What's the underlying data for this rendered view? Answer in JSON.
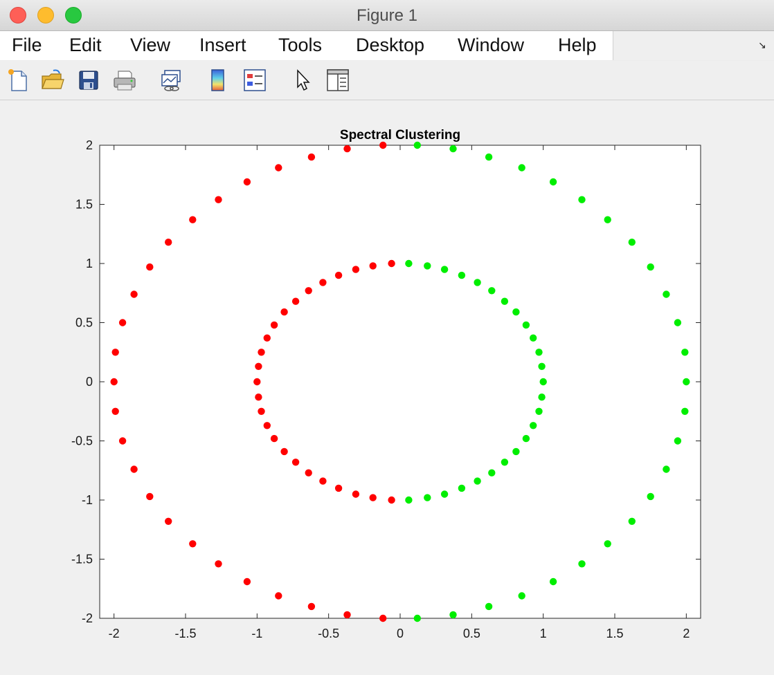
{
  "window": {
    "title": "Figure 1"
  },
  "menu": {
    "items": [
      "File",
      "Edit",
      "View",
      "Insert",
      "Tools",
      "Desktop",
      "Window",
      "Help"
    ]
  },
  "toolbar": {
    "icons": [
      "new-figure-icon",
      "open-file-icon",
      "save-icon",
      "print-icon",
      "link-plot-icon",
      "insert-colorbar-icon",
      "insert-legend-icon",
      "edit-plot-arrow-icon",
      "property-inspector-icon"
    ]
  },
  "colors": {
    "cluster1": "#ff0000",
    "cluster2": "#00ee00"
  },
  "chart_data": {
    "type": "scatter",
    "title": "Spectral Clustering",
    "xlabel": "",
    "ylabel": "",
    "xlim": [
      -2.1,
      2.1
    ],
    "ylim": [
      -2,
      2
    ],
    "xticks": [
      "-2",
      "-1.5",
      "-1",
      "-0.5",
      "0",
      "0.5",
      "1",
      "1.5",
      "2"
    ],
    "yticks": [
      "2",
      "1.5",
      "1",
      "0.5",
      "0",
      "-0.5",
      "-1",
      "-1.5",
      "-2"
    ],
    "grid": false,
    "series": [
      {
        "color": "#ff0000",
        "points": [
          [
            -0.12,
            2.0
          ],
          [
            -0.37,
            1.97
          ],
          [
            -0.62,
            1.9
          ],
          [
            -0.85,
            1.81
          ],
          [
            -1.07,
            1.69
          ],
          [
            -1.27,
            1.54
          ],
          [
            -1.45,
            1.37
          ],
          [
            -1.62,
            1.18
          ],
          [
            -1.75,
            0.97
          ],
          [
            -1.86,
            0.74
          ],
          [
            -1.94,
            0.5
          ],
          [
            -1.99,
            0.25
          ],
          [
            -2.0,
            0.0
          ],
          [
            -1.99,
            -0.25
          ],
          [
            -1.94,
            -0.5
          ],
          [
            -1.86,
            -0.74
          ],
          [
            -1.75,
            -0.97
          ],
          [
            -1.62,
            -1.18
          ],
          [
            -1.45,
            -1.37
          ],
          [
            -1.27,
            -1.54
          ],
          [
            -1.07,
            -1.69
          ],
          [
            -0.85,
            -1.81
          ],
          [
            -0.62,
            -1.9
          ],
          [
            -0.37,
            -1.97
          ],
          [
            -0.12,
            -2.0
          ],
          [
            -0.06,
            1.0
          ],
          [
            -0.19,
            0.98
          ],
          [
            -0.31,
            0.95
          ],
          [
            -0.43,
            0.9
          ],
          [
            -0.54,
            0.84
          ],
          [
            -0.64,
            0.77
          ],
          [
            -0.73,
            0.68
          ],
          [
            -0.81,
            0.59
          ],
          [
            -0.88,
            0.48
          ],
          [
            -0.93,
            0.37
          ],
          [
            -0.97,
            0.25
          ],
          [
            -0.99,
            0.13
          ],
          [
            -1.0,
            0.0
          ],
          [
            -0.99,
            -0.13
          ],
          [
            -0.97,
            -0.25
          ],
          [
            -0.93,
            -0.37
          ],
          [
            -0.88,
            -0.48
          ],
          [
            -0.81,
            -0.59
          ],
          [
            -0.73,
            -0.68
          ],
          [
            -0.64,
            -0.77
          ],
          [
            -0.54,
            -0.84
          ],
          [
            -0.43,
            -0.9
          ],
          [
            -0.31,
            -0.95
          ],
          [
            -0.19,
            -0.98
          ],
          [
            -0.06,
            -1.0
          ]
        ]
      },
      {
        "color": "#00ee00",
        "points": [
          [
            0.12,
            2.0
          ],
          [
            0.37,
            1.97
          ],
          [
            0.62,
            1.9
          ],
          [
            0.85,
            1.81
          ],
          [
            1.07,
            1.69
          ],
          [
            1.27,
            1.54
          ],
          [
            1.45,
            1.37
          ],
          [
            1.62,
            1.18
          ],
          [
            1.75,
            0.97
          ],
          [
            1.86,
            0.74
          ],
          [
            1.94,
            0.5
          ],
          [
            1.99,
            0.25
          ],
          [
            2.0,
            0.0
          ],
          [
            1.99,
            -0.25
          ],
          [
            1.94,
            -0.5
          ],
          [
            1.86,
            -0.74
          ],
          [
            1.75,
            -0.97
          ],
          [
            1.62,
            -1.18
          ],
          [
            1.45,
            -1.37
          ],
          [
            1.27,
            -1.54
          ],
          [
            1.07,
            -1.69
          ],
          [
            0.85,
            -1.81
          ],
          [
            0.62,
            -1.9
          ],
          [
            0.37,
            -1.97
          ],
          [
            0.12,
            -2.0
          ],
          [
            0.06,
            1.0
          ],
          [
            0.19,
            0.98
          ],
          [
            0.31,
            0.95
          ],
          [
            0.43,
            0.9
          ],
          [
            0.54,
            0.84
          ],
          [
            0.64,
            0.77
          ],
          [
            0.73,
            0.68
          ],
          [
            0.81,
            0.59
          ],
          [
            0.88,
            0.48
          ],
          [
            0.93,
            0.37
          ],
          [
            0.97,
            0.25
          ],
          [
            0.99,
            0.13
          ],
          [
            1.0,
            0.0
          ],
          [
            0.99,
            -0.13
          ],
          [
            0.97,
            -0.25
          ],
          [
            0.93,
            -0.37
          ],
          [
            0.88,
            -0.48
          ],
          [
            0.81,
            -0.59
          ],
          [
            0.73,
            -0.68
          ],
          [
            0.64,
            -0.77
          ],
          [
            0.54,
            -0.84
          ],
          [
            0.43,
            -0.9
          ],
          [
            0.31,
            -0.95
          ],
          [
            0.19,
            -0.98
          ],
          [
            0.06,
            -1.0
          ]
        ]
      }
    ]
  }
}
